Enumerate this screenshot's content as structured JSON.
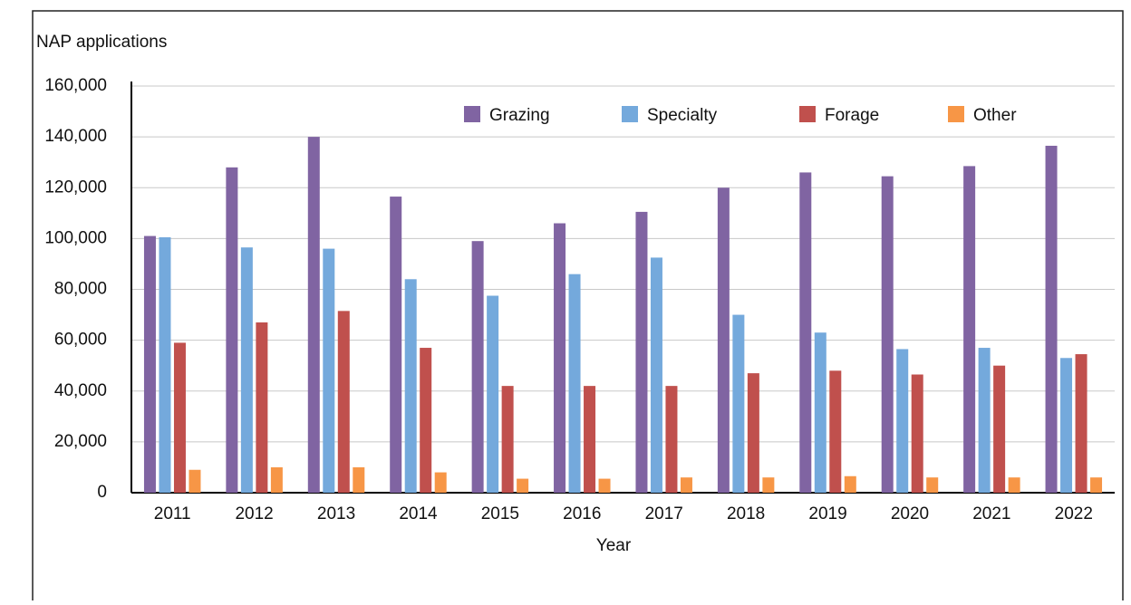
{
  "chart_data": {
    "type": "bar",
    "y_label": "NAP applications",
    "x_label": "Year",
    "categories": [
      "2011",
      "2012",
      "2013",
      "2014",
      "2015",
      "2016",
      "2017",
      "2018",
      "2019",
      "2020",
      "2021",
      "2022"
    ],
    "series": [
      {
        "name": "Grazing",
        "color": "#8064a2",
        "values": [
          101000,
          128000,
          140000,
          116500,
          99000,
          106000,
          110500,
          120000,
          126000,
          124500,
          128500,
          136500
        ]
      },
      {
        "name": "Specialty",
        "color": "#74a9dc",
        "values": [
          100500,
          96500,
          96000,
          84000,
          77500,
          86000,
          92500,
          70000,
          63000,
          56500,
          57000,
          53000
        ]
      },
      {
        "name": "Forage",
        "color": "#c0504d",
        "values": [
          59000,
          67000,
          71500,
          57000,
          42000,
          42000,
          42000,
          47000,
          48000,
          46500,
          50000,
          54500
        ]
      },
      {
        "name": "Other",
        "color": "#f79646",
        "values": [
          9000,
          10000,
          10000,
          8000,
          5500,
          5500,
          6000,
          6000,
          6500,
          6000,
          6000,
          6000
        ]
      }
    ],
    "ylim": [
      0,
      160000
    ],
    "yticks": [
      0,
      {
        "value": 20000,
        "label": "20,000"
      },
      {
        "value": 40000,
        "label": "40,000"
      },
      {
        "value": 60000,
        "label": "60,000"
      },
      {
        "value": 80000,
        "label": "80,000"
      },
      {
        "value": 100000,
        "label": "100,000"
      },
      {
        "value": 120000,
        "label": "120,000"
      },
      {
        "value": 140000,
        "label": "140,000"
      },
      {
        "value": 160000,
        "label": "160,000"
      }
    ],
    "grid": true,
    "legend": "top"
  }
}
